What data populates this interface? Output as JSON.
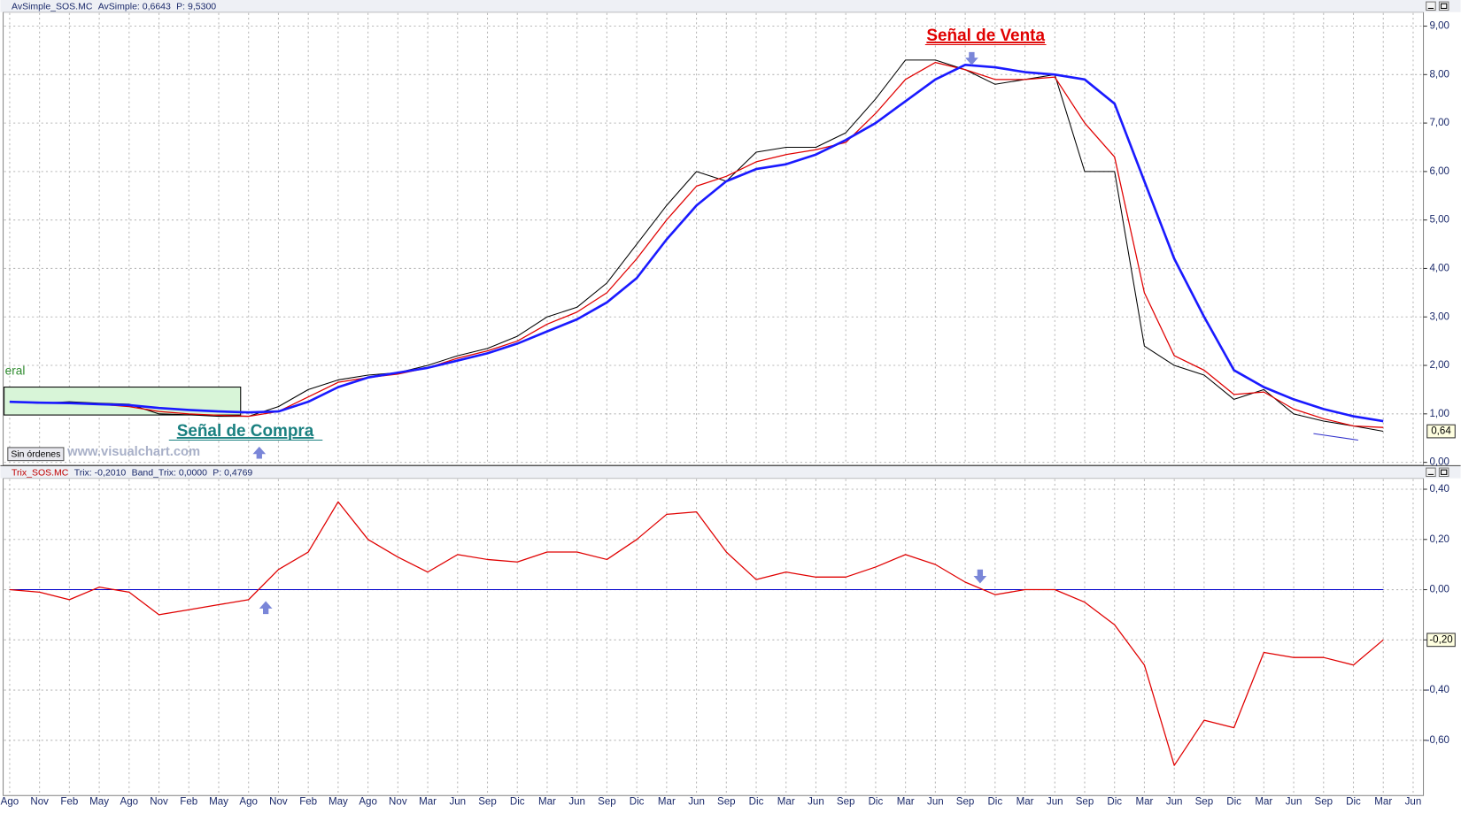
{
  "chart_data": {
    "type": "line",
    "categories": [
      "Ago",
      "Nov",
      "Feb",
      "May",
      "Ago",
      "Nov",
      "Feb",
      "May",
      "Ago",
      "Nov",
      "Feb",
      "May",
      "Ago",
      "Nov",
      "Mar",
      "Jun",
      "Sep",
      "Dic",
      "Mar",
      "Jun",
      "Sep",
      "Dic",
      "Mar",
      "Jun",
      "Sep",
      "Dic",
      "Mar",
      "Jun",
      "Sep",
      "Dic",
      "Mar",
      "Jun",
      "Sep",
      "Dic",
      "Mar",
      "Jun",
      "Sep",
      "Dic",
      "Mar",
      "Jun",
      "Sep",
      "Dic",
      "Mar",
      "Jun",
      "Sep",
      "Dic",
      "Mar",
      "Jun"
    ],
    "grid": true,
    "panels": [
      {
        "header": [
          "AvSimple_SOS.MC",
          "AvSimple: 0,6643",
          "P: 9,5300"
        ],
        "ylim": [
          -0.06,
          9.27
        ],
        "yticks": [
          {
            "value": 0,
            "label": "0,00"
          },
          {
            "value": 1,
            "label": "1,00"
          },
          {
            "value": 2,
            "label": "2,00"
          },
          {
            "value": 3,
            "label": "3,00"
          },
          {
            "value": 4,
            "label": "4,00"
          },
          {
            "value": 5,
            "label": "5,00"
          },
          {
            "value": 6,
            "label": "6,00"
          },
          {
            "value": 7,
            "label": "7,00"
          },
          {
            "value": 8,
            "label": "8,00"
          },
          {
            "value": 9,
            "label": "9,00"
          }
        ],
        "last_label": {
          "value": 0.64,
          "label": "0,64"
        },
        "series": [
          {
            "color": "#000000",
            "width": 1,
            "values": [
              1.25,
              1.22,
              1.25,
              1.22,
              1.2,
              1.0,
              0.98,
              0.95,
              0.95,
              1.15,
              1.5,
              1.7,
              1.8,
              1.85,
              2.0,
              2.2,
              2.35,
              2.6,
              3.0,
              3.2,
              3.7,
              4.5,
              5.3,
              6.0,
              5.8,
              6.4,
              6.5,
              6.5,
              6.8,
              7.5,
              8.3,
              8.3,
              8.1,
              7.8,
              7.9,
              8.0,
              6.0,
              6.0,
              2.4,
              2.0,
              1.8,
              1.3,
              1.5,
              1.0,
              0.85,
              0.75,
              0.64,
              null
            ]
          },
          {
            "color": "#e00000",
            "width": 1.2,
            "values": [
              1.25,
              1.22,
              1.22,
              1.2,
              1.15,
              1.05,
              1.0,
              0.97,
              0.95,
              1.05,
              1.35,
              1.65,
              1.75,
              1.82,
              1.95,
              2.15,
              2.3,
              2.5,
              2.85,
              3.1,
              3.5,
              4.2,
              5.0,
              5.7,
              5.9,
              6.2,
              6.35,
              6.45,
              6.6,
              7.2,
              7.9,
              8.25,
              8.1,
              7.9,
              7.9,
              7.95,
              7.0,
              6.3,
              3.5,
              2.2,
              1.9,
              1.4,
              1.45,
              1.1,
              0.9,
              0.75,
              0.72,
              null
            ]
          },
          {
            "color": "#1a1aff",
            "width": 2.5,
            "values": [
              1.25,
              1.23,
              1.22,
              1.2,
              1.18,
              1.12,
              1.08,
              1.05,
              1.03,
              1.05,
              1.25,
              1.55,
              1.75,
              1.85,
              1.95,
              2.1,
              2.25,
              2.45,
              2.7,
              2.95,
              3.3,
              3.8,
              4.6,
              5.3,
              5.8,
              6.05,
              6.15,
              6.35,
              6.65,
              7.0,
              7.45,
              7.9,
              8.2,
              8.15,
              8.05,
              8.0,
              7.9,
              7.4,
              5.8,
              4.2,
              3.0,
              1.9,
              1.55,
              1.3,
              1.1,
              0.95,
              0.85,
              null
            ]
          }
        ]
      },
      {
        "header": [
          "Trix_SOS.MC",
          "Trix: -0,2010",
          "Band_Trix: 0,0000",
          "P: 0,4769"
        ],
        "ylim": [
          -0.82,
          0.44
        ],
        "yticks": [
          {
            "value": 0.4,
            "label": "0,40"
          },
          {
            "value": 0.2,
            "label": "0,20"
          },
          {
            "value": 0,
            "label": "0,00"
          },
          {
            "value": -0.2,
            "label": "-0,20"
          },
          {
            "value": -0.4,
            "label": "-0,40"
          },
          {
            "value": -0.6,
            "label": "-0,60"
          }
        ],
        "last_label": {
          "value": -0.2,
          "label": "-0,20"
        },
        "series": [
          {
            "color": "#0000cc",
            "width": 1,
            "values": [
              0,
              0,
              0,
              0,
              0,
              0,
              0,
              0,
              0,
              0,
              0,
              0,
              0,
              0,
              0,
              0,
              0,
              0,
              0,
              0,
              0,
              0,
              0,
              0,
              0,
              0,
              0,
              0,
              0,
              0,
              0,
              0,
              0,
              0,
              0,
              0,
              0,
              0,
              0,
              0,
              0,
              0,
              0,
              0,
              0,
              0,
              0,
              null
            ]
          },
          {
            "color": "#e00000",
            "width": 1.2,
            "values": [
              0.0,
              -0.01,
              -0.04,
              0.01,
              -0.01,
              -0.1,
              -0.08,
              -0.06,
              -0.04,
              0.08,
              0.15,
              0.35,
              0.2,
              0.13,
              0.07,
              0.14,
              0.12,
              0.11,
              0.15,
              0.15,
              0.12,
              0.2,
              0.3,
              0.31,
              0.15,
              0.04,
              0.07,
              0.05,
              0.05,
              0.09,
              0.14,
              0.1,
              0.03,
              -0.02,
              0.0,
              0.0,
              -0.05,
              -0.14,
              -0.3,
              -0.7,
              -0.52,
              -0.55,
              -0.25,
              -0.27,
              -0.27,
              -0.3,
              -0.2,
              null
            ]
          }
        ]
      }
    ],
    "annotations": [
      "eral",
      "Señal de Compra",
      "Señal de Venta"
    ],
    "status": "Sin órdenes",
    "watermark": "www.visualchart.com"
  }
}
